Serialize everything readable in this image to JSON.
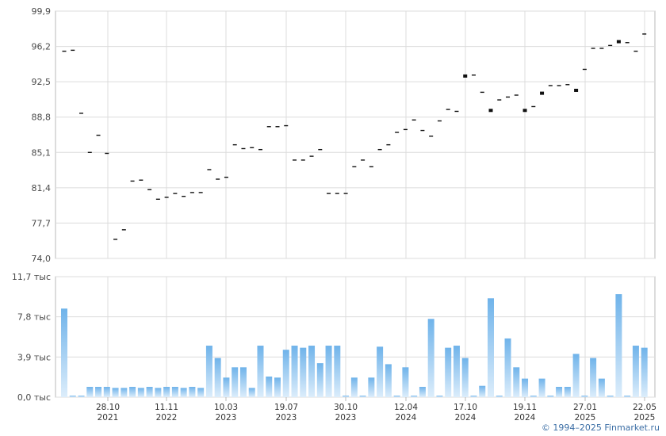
{
  "chart_data": [
    {
      "type": "scatter",
      "ylim": [
        74.0,
        99.9
      ],
      "yticks": [
        "74,0",
        "77,7",
        "81,4",
        "85,1",
        "88,8",
        "92,5",
        "96,2",
        "99,9"
      ],
      "values": [
        95.7,
        95.8,
        89.2,
        85.1,
        86.9,
        85.0,
        76.0,
        77.0,
        82.1,
        82.2,
        81.2,
        80.2,
        80.4,
        80.8,
        80.5,
        80.9,
        80.9,
        83.3,
        82.3,
        82.5,
        85.9,
        85.5,
        85.6,
        85.4,
        87.8,
        87.8,
        87.9,
        84.3,
        84.3,
        84.7,
        85.4,
        80.8,
        80.8,
        80.8,
        83.6,
        84.3,
        83.6,
        85.4,
        85.9,
        87.2,
        87.5,
        88.5,
        87.4,
        86.8,
        88.4,
        89.6,
        89.4,
        93.1,
        93.2,
        91.4,
        89.5,
        90.6,
        90.9,
        91.1,
        89.5,
        89.9,
        91.3,
        92.1,
        92.1,
        92.2,
        91.6,
        93.8,
        96.0,
        96.0,
        96.3,
        96.7,
        96.6,
        95.7,
        97.5
      ],
      "emphasized_points": [
        47,
        50,
        54,
        56,
        60,
        65
      ]
    },
    {
      "type": "bar",
      "ylim": [
        0,
        11.7
      ],
      "yticks": [
        "0,0 тыс",
        "3,9 тыс",
        "7,8 тыс",
        "11,7 тыс"
      ],
      "values": [
        8.6,
        0.15,
        0.15,
        1.0,
        1.0,
        1.0,
        0.9,
        0.9,
        1.0,
        0.9,
        1.0,
        0.9,
        1.0,
        1.0,
        0.9,
        1.0,
        0.9,
        5.0,
        3.8,
        1.9,
        2.9,
        2.9,
        0.9,
        5.0,
        2.0,
        1.9,
        4.6,
        5.0,
        4.8,
        5.0,
        3.3,
        5.0,
        5.0,
        0.15,
        1.9,
        0.15,
        1.9,
        4.9,
        3.2,
        0.15,
        2.9,
        0.15,
        1.0,
        7.6,
        0.15,
        4.8,
        5.0,
        3.8,
        0.15,
        1.1,
        9.6,
        0.15,
        5.7,
        2.9,
        1.8,
        0.15,
        1.8,
        0.15,
        1.0,
        1.0,
        4.2,
        0.15,
        3.8,
        1.8,
        0.15,
        10.0,
        0.15,
        5.0,
        4.8
      ]
    }
  ],
  "x_labels": [
    {
      "date": "28.10",
      "year": "2021"
    },
    {
      "date": "11.11",
      "year": "2022"
    },
    {
      "date": "10.03",
      "year": "2023"
    },
    {
      "date": "19.07",
      "year": "2023"
    },
    {
      "date": "30.10",
      "year": "2023"
    },
    {
      "date": "12.04",
      "year": "2024"
    },
    {
      "date": "17.10",
      "year": "2024"
    },
    {
      "date": "19.11",
      "year": "2024"
    },
    {
      "date": "27.01",
      "year": "2025"
    },
    {
      "date": "22.05",
      "year": "2025"
    }
  ],
  "credit": "© 1994–2025 Finmarket.ru",
  "colors": {
    "grid": "#dcdcdc",
    "axis": "#b8b8b8",
    "marker": "#111111",
    "bar_top": "#6fb3ea",
    "bar_bottom": "#dcedfb"
  }
}
